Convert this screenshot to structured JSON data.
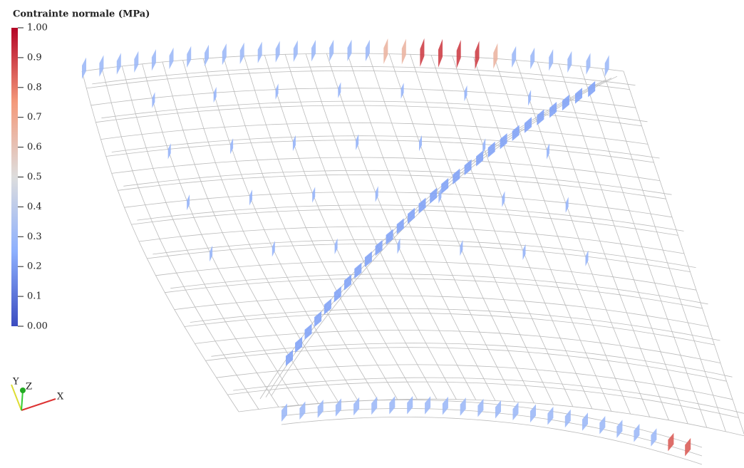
{
  "colorbar": {
    "title": "Contrainte normale (MPa)",
    "range": [
      0,
      1
    ],
    "ticks": [
      {
        "value": 1,
        "label": "1.00"
      },
      {
        "value": 0.9,
        "label": "0.9"
      },
      {
        "value": 0.8,
        "label": "0.8"
      },
      {
        "value": 0.7,
        "label": "0.7"
      },
      {
        "value": 0.6,
        "label": "0.6"
      },
      {
        "value": 0.5,
        "label": "0.5"
      },
      {
        "value": 0.4,
        "label": "0.4"
      },
      {
        "value": 0.3,
        "label": "0.3"
      },
      {
        "value": 0.2,
        "label": "0.2"
      },
      {
        "value": 0.1,
        "label": "0.1"
      },
      {
        "value": 0,
        "label": "0.00"
      }
    ]
  },
  "axes": {
    "x": "X",
    "y": "Y",
    "z": "Z"
  }
}
